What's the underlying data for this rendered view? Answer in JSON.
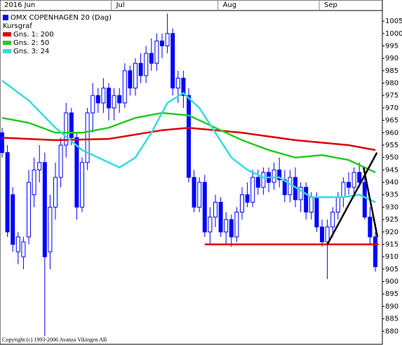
{
  "chart_data": {
    "type": "candlestick",
    "title": "OMX COPENHAGEN 20 (Dag)",
    "title_color": "#0000ff",
    "copyright": "Copyright (c) 1993-2006 Avanza Vikingen AB",
    "categories": [
      "2016 Jun",
      null,
      null,
      null,
      null,
      null,
      null,
      null,
      null,
      null,
      null,
      null,
      null,
      null,
      null,
      null,
      null,
      null,
      null,
      null,
      null,
      "Jul",
      null,
      null,
      null,
      null,
      null,
      null,
      null,
      null,
      null,
      null,
      null,
      null,
      null,
      null,
      null,
      null,
      null,
      null,
      null,
      "Aug",
      null,
      null,
      null,
      null,
      null,
      null,
      null,
      null,
      null,
      null,
      null,
      null,
      null,
      null,
      null,
      null,
      null,
      null,
      "Sep",
      null,
      null,
      null,
      null,
      null,
      null,
      null,
      null,
      null,
      null
    ],
    "candles": {
      "name": "Kursgraf",
      "color": "#0000ff",
      "open": [
        960,
        952,
        935,
        912,
        910,
        918,
        935,
        945,
        948,
        912,
        930,
        942,
        955,
        968,
        958,
        930,
        948,
        968,
        975,
        972,
        978,
        970,
        975,
        972,
        985,
        978,
        988,
        983,
        992,
        988,
        997,
        995,
        1000,
        978,
        982,
        975,
        942,
        930,
        940,
        920,
        926,
        932,
        920,
        925,
        918,
        928,
        935,
        932,
        942,
        938,
        944,
        940,
        945,
        941,
        935,
        942,
        933,
        938,
        928,
        934,
        922,
        916,
        922,
        928,
        934,
        940,
        938,
        944,
        940,
        926,
        918
      ],
      "high": [
        962,
        955,
        938,
        920,
        918,
        945,
        950,
        955,
        952,
        935,
        948,
        958,
        972,
        970,
        960,
        950,
        970,
        980,
        978,
        982,
        980,
        978,
        978,
        988,
        987,
        990,
        992,
        995,
        998,
        1000,
        1000,
        1008,
        1002,
        985,
        985,
        978,
        945,
        942,
        943,
        930,
        935,
        934,
        928,
        927,
        930,
        938,
        940,
        945,
        945,
        946,
        946,
        948,
        950,
        945,
        945,
        946,
        940,
        940,
        936,
        936,
        925,
        925,
        930,
        936,
        942,
        944,
        946,
        948,
        942,
        930,
        920
      ],
      "low": [
        950,
        918,
        912,
        907,
        905,
        915,
        930,
        940,
        878,
        905,
        925,
        938,
        950,
        955,
        925,
        928,
        945,
        960,
        968,
        968,
        965,
        965,
        968,
        970,
        975,
        975,
        980,
        980,
        985,
        985,
        990,
        992,
        975,
        972,
        970,
        940,
        928,
        928,
        918,
        915,
        922,
        918,
        915,
        914,
        916,
        925,
        930,
        930,
        935,
        935,
        936,
        937,
        938,
        932,
        932,
        930,
        928,
        925,
        925,
        920,
        914,
        901,
        918,
        925,
        930,
        935,
        934,
        938,
        925,
        915,
        904
      ],
      "close": [
        952,
        920,
        915,
        918,
        916,
        940,
        945,
        948,
        910,
        930,
        942,
        955,
        968,
        958,
        930,
        948,
        968,
        975,
        972,
        978,
        970,
        975,
        972,
        985,
        978,
        988,
        983,
        992,
        988,
        997,
        995,
        1000,
        978,
        982,
        975,
        942,
        930,
        940,
        920,
        926,
        932,
        920,
        925,
        918,
        928,
        935,
        932,
        942,
        938,
        944,
        940,
        945,
        941,
        935,
        942,
        933,
        938,
        928,
        934,
        922,
        916,
        922,
        928,
        934,
        940,
        938,
        944,
        940,
        926,
        918,
        906
      ]
    },
    "series": [
      {
        "name": "Gns. 1: 200",
        "color": "#dd0000",
        "x": [
          0,
          10,
          20,
          30,
          35,
          45,
          55,
          65,
          70
        ],
        "values": [
          958,
          957,
          957.5,
          961,
          962,
          960,
          957,
          955,
          953
        ]
      },
      {
        "name": "Gns. 2: 50",
        "color": "#22cc22",
        "x": [
          0,
          5,
          10,
          15,
          20,
          25,
          30,
          35,
          40,
          45,
          50,
          55,
          60,
          65,
          70
        ],
        "values": [
          966,
          964,
          960,
          960,
          962,
          966,
          968,
          967,
          962,
          957,
          953,
          950,
          951,
          949,
          944
        ]
      },
      {
        "name": "Gns. 3: 24",
        "color": "#33dddd",
        "x": [
          0,
          5,
          10,
          15,
          20,
          22,
          25,
          28,
          31,
          34,
          37,
          40,
          43,
          46,
          49,
          52,
          55,
          58,
          61,
          64,
          67,
          70
        ],
        "values": [
          981,
          973,
          962,
          953,
          948,
          946,
          950,
          960,
          972,
          976,
          970,
          960,
          950,
          945,
          942,
          942,
          938,
          934,
          934,
          934,
          935,
          932
        ]
      }
    ],
    "annotations": [
      {
        "color": "#dd0000",
        "x": [
          38,
          70.6
        ],
        "values": [
          915,
          915
        ]
      },
      {
        "color": "#000000",
        "x": [
          61,
          70.3
        ],
        "values": [
          915,
          952
        ]
      },
      {
        "color": "#000000",
        "x": [
          67.8,
          70.4
        ],
        "values": [
          946,
          918
        ]
      }
    ],
    "ylim": [
      875,
      1013.5
    ],
    "yticks": [
      880,
      885,
      890,
      895,
      900,
      905,
      910,
      915,
      920,
      925,
      930,
      935,
      940,
      945,
      950,
      955,
      960,
      965,
      970,
      975,
      980,
      985,
      990,
      995,
      1000,
      1005
    ]
  }
}
